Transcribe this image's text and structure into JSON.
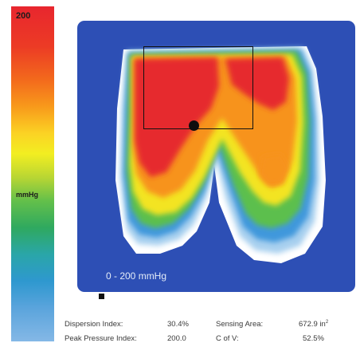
{
  "color_scale": {
    "max_label": "200",
    "unit_label": "mmHg"
  },
  "pressure_map": {
    "range_label": "0 - 200 mmHg"
  },
  "stats": {
    "dispersion_index_label": "Dispersion Index:",
    "dispersion_index_value": "30.4%",
    "peak_pressure_index_label": "Peak Pressure Index:",
    "peak_pressure_index_value": "200.0",
    "sensing_area_label": "Sensing Area:",
    "sensing_area_value": "672.9 in",
    "sensing_area_exponent": "2",
    "c_of_v_label": "C of V:",
    "c_of_v_value": "52.5%"
  },
  "colors": {
    "panel_blue": "#2d4fb5",
    "peak_red": "#e8262e",
    "low_blue": "#84b8e6"
  }
}
